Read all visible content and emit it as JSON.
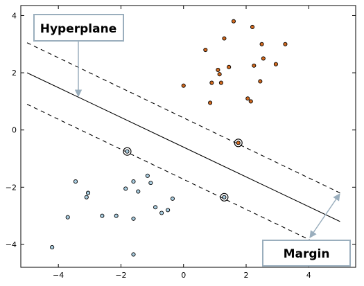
{
  "chart_data": {
    "type": "scatter",
    "title": "",
    "xlabel": "",
    "ylabel": "",
    "xlim": [
      -5.2,
      5.5
    ],
    "ylim": [
      -4.8,
      4.35
    ],
    "x_ticks": [
      -4,
      -2,
      0,
      2,
      4
    ],
    "y_ticks": [
      -4,
      -2,
      0,
      2,
      4
    ],
    "x_tick_labels": [
      "−4",
      "−2",
      "0",
      "2",
      "4"
    ],
    "y_tick_labels": [
      "−4",
      "−2",
      "0",
      "2",
      "4"
    ],
    "grid": false,
    "series": [
      {
        "color": "#d2691e",
        "points": [
          [
            1.6,
            3.8
          ],
          [
            2.2,
            3.6
          ],
          [
            1.3,
            3.2
          ],
          [
            2.5,
            3.0
          ],
          [
            3.25,
            3.0
          ],
          [
            0.7,
            2.8
          ],
          [
            2.55,
            2.5
          ],
          [
            1.1,
            2.1
          ],
          [
            1.45,
            2.2
          ],
          [
            2.25,
            2.25
          ],
          [
            2.95,
            2.3
          ],
          [
            1.15,
            1.95
          ],
          [
            0.9,
            1.65
          ],
          [
            1.2,
            1.65
          ],
          [
            2.45,
            1.7
          ],
          [
            0.0,
            1.55
          ],
          [
            2.05,
            1.1
          ],
          [
            2.15,
            1.0
          ],
          [
            0.85,
            0.95
          ],
          [
            1.75,
            -0.45
          ]
        ]
      },
      {
        "color": "#a9cde0",
        "points": [
          [
            -1.8,
            -0.75
          ],
          [
            -1.6,
            -1.8
          ],
          [
            -1.15,
            -1.6
          ],
          [
            -3.45,
            -1.8
          ],
          [
            -1.05,
            -1.85
          ],
          [
            -1.85,
            -2.05
          ],
          [
            -1.45,
            -2.15
          ],
          [
            -3.05,
            -2.2
          ],
          [
            -3.1,
            -2.35
          ],
          [
            -0.35,
            -2.4
          ],
          [
            -0.9,
            -2.7
          ],
          [
            -0.5,
            -2.8
          ],
          [
            -0.7,
            -2.9
          ],
          [
            -2.6,
            -3.0
          ],
          [
            -2.15,
            -3.0
          ],
          [
            -3.7,
            -3.05
          ],
          [
            -1.6,
            -3.1
          ],
          [
            1.3,
            -2.35
          ],
          [
            -4.2,
            -4.1
          ],
          [
            -1.6,
            -4.35
          ]
        ]
      }
    ],
    "support_vectors": [
      [
        1.75,
        -0.45
      ],
      [
        -1.8,
        -0.75
      ],
      [
        1.3,
        -2.35
      ]
    ],
    "lines": [
      {
        "kind": "hyperplane",
        "style": "solid",
        "x": [
          -5.0,
          5.0
        ],
        "y": [
          2.0,
          -3.2
        ]
      },
      {
        "kind": "margin",
        "style": "dashed",
        "x": [
          -5.0,
          5.0
        ],
        "y": [
          3.05,
          -2.2
        ]
      },
      {
        "kind": "margin",
        "style": "dashed",
        "x": [
          -5.0,
          5.0
        ],
        "y": [
          0.9,
          -4.35
        ]
      }
    ],
    "annotations": [
      {
        "id": "hyperplane",
        "text": "Hyperplane",
        "arrow_to": [
          -3.5,
          1.2
        ]
      },
      {
        "id": "margin",
        "text": "Margin",
        "arrow_between": [
          [
            5.0,
            -2.2
          ],
          [
            4.0,
            -3.85
          ]
        ]
      }
    ]
  },
  "colors": {
    "class_a": "#d2691e",
    "class_b": "#a9cde0",
    "annotation": "#9aaebd",
    "axes": "#000000"
  }
}
